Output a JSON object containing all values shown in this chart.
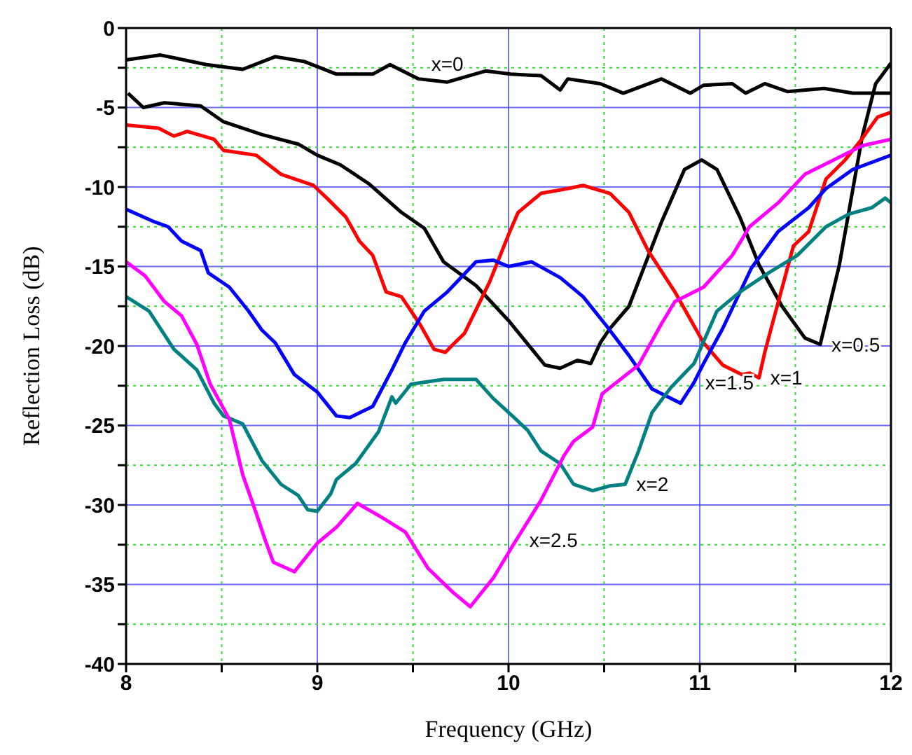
{
  "chart_data": {
    "type": "line",
    "xlabel": "Frequency (GHz)",
    "ylabel": "Reflection Loss (dB)",
    "xlim": [
      8,
      12
    ],
    "xticks": [
      8,
      {
        "value": 8.5,
        "label": null
      },
      9,
      {
        "value": 9.5,
        "label": null
      },
      10,
      {
        "value": 10.5,
        "label": null
      },
      11,
      {
        "value": 11.5,
        "label": null
      },
      12
    ],
    "ylim": [
      -40,
      0
    ],
    "yticks": [
      -40,
      {
        "value": -37.5,
        "label": null
      },
      -35,
      {
        "value": -32.5,
        "label": null
      },
      -30,
      {
        "value": -27.5,
        "label": null
      },
      -25,
      {
        "value": -22.5,
        "label": null
      },
      -20,
      {
        "value": -17.5,
        "label": null
      },
      -15,
      {
        "value": -12.5,
        "label": null
      },
      -10,
      {
        "value": -7.5,
        "label": null
      },
      -5,
      {
        "value": -2.5,
        "label": null
      },
      0
    ],
    "grid": true,
    "legend": false,
    "marker": "none",
    "line_style": "solid",
    "series": [
      {
        "color": "#000000",
        "x": [
          8.0,
          8.18,
          8.42,
          8.61,
          8.78,
          8.93,
          9.1,
          9.29,
          9.38,
          9.53,
          9.68,
          9.88,
          10.01,
          10.17,
          10.27,
          10.31,
          10.48,
          10.6,
          10.8,
          10.95,
          11.02,
          11.17,
          11.24,
          11.34,
          11.46,
          11.65,
          11.8,
          12.0
        ],
        "values": [
          -2.0,
          -1.7,
          -2.3,
          -2.6,
          -1.8,
          -2.1,
          -2.9,
          -2.9,
          -2.3,
          -3.2,
          -3.4,
          -2.7,
          -2.9,
          -3.0,
          -3.9,
          -3.2,
          -3.5,
          -4.1,
          -3.2,
          -4.1,
          -3.6,
          -3.5,
          -4.1,
          -3.5,
          -4.0,
          -3.8,
          -4.1,
          -4.1
        ]
      },
      {
        "color": "#000000",
        "x": [
          8.01,
          8.09,
          8.2,
          8.39,
          8.51,
          8.71,
          8.9,
          9.0,
          9.12,
          9.27,
          9.44,
          9.56,
          9.66,
          9.83,
          10.0,
          10.19,
          10.27,
          10.36,
          10.43,
          10.48,
          10.53,
          10.63,
          10.8,
          10.92,
          11.01,
          11.09,
          11.21,
          11.31,
          11.43,
          11.55,
          11.63,
          11.73,
          11.85,
          11.92,
          12.0
        ],
        "values": [
          -4.1,
          -5.0,
          -4.7,
          -4.9,
          -5.9,
          -6.7,
          -7.3,
          -8.0,
          -8.6,
          -9.8,
          -11.6,
          -12.6,
          -14.7,
          -16.2,
          -18.4,
          -21.2,
          -21.4,
          -20.9,
          -21.1,
          -19.8,
          -18.9,
          -17.5,
          -12.2,
          -8.9,
          -8.3,
          -8.9,
          -11.9,
          -14.9,
          -17.5,
          -19.5,
          -19.9,
          -14.9,
          -6.8,
          -3.5,
          -2.2
        ]
      },
      {
        "color": "#ff0000",
        "x": [
          8.0,
          8.17,
          8.25,
          8.32,
          8.46,
          8.51,
          8.68,
          8.81,
          8.98,
          9.05,
          9.15,
          9.22,
          9.29,
          9.36,
          9.44,
          9.54,
          9.61,
          9.67,
          9.71,
          9.77,
          9.9,
          10.0,
          10.05,
          10.17,
          10.31,
          10.39,
          10.53,
          10.63,
          10.73,
          10.87,
          11.02,
          11.12,
          11.22,
          11.26,
          11.31,
          11.34,
          11.38,
          11.49,
          11.57,
          11.66,
          11.76,
          11.84,
          11.93,
          12.0
        ],
        "values": [
          -6.1,
          -6.3,
          -6.8,
          -6.5,
          -7.0,
          -7.7,
          -8.0,
          -9.2,
          -9.9,
          -10.7,
          -11.9,
          -13.4,
          -14.3,
          -16.6,
          -16.9,
          -18.7,
          -20.2,
          -20.4,
          -19.9,
          -19.2,
          -16.0,
          -13.0,
          -11.6,
          -10.4,
          -10.1,
          -9.9,
          -10.4,
          -11.6,
          -14.0,
          -16.6,
          -19.8,
          -21.2,
          -21.8,
          -21.7,
          -22.0,
          -20.4,
          -18.6,
          -13.7,
          -12.8,
          -9.5,
          -8.3,
          -7.1,
          -5.6,
          -5.3
        ]
      },
      {
        "color": "#0000ff",
        "x": [
          8.0,
          8.15,
          8.22,
          8.29,
          8.39,
          8.43,
          8.54,
          8.64,
          8.71,
          8.78,
          8.88,
          9.0,
          9.1,
          9.17,
          9.29,
          9.39,
          9.46,
          9.56,
          9.68,
          9.83,
          9.92,
          10.0,
          10.12,
          10.27,
          10.39,
          10.51,
          10.63,
          10.75,
          10.9,
          10.97,
          11.02,
          11.12,
          11.27,
          11.41,
          11.57,
          11.66,
          11.8,
          12.0
        ],
        "values": [
          -11.4,
          -12.2,
          -12.5,
          -13.4,
          -14.0,
          -15.4,
          -16.3,
          -17.8,
          -19.0,
          -19.8,
          -21.8,
          -22.9,
          -24.4,
          -24.5,
          -23.8,
          -21.5,
          -19.8,
          -17.8,
          -16.6,
          -14.7,
          -14.6,
          -15.0,
          -14.7,
          -15.7,
          -16.9,
          -18.7,
          -20.6,
          -22.7,
          -23.6,
          -22.3,
          -21.1,
          -18.9,
          -15.1,
          -12.8,
          -11.3,
          -10.1,
          -8.9,
          -8.0
        ]
      },
      {
        "color": "#008080",
        "x": [
          8.0,
          8.12,
          8.25,
          8.37,
          8.46,
          8.51,
          8.61,
          8.71,
          8.81,
          8.9,
          8.95,
          9.0,
          9.07,
          9.1,
          9.2,
          9.32,
          9.39,
          9.41,
          9.49,
          9.66,
          9.83,
          9.92,
          10.02,
          10.1,
          10.17,
          10.27,
          10.34,
          10.44,
          10.53,
          10.61,
          10.68,
          10.75,
          10.85,
          10.97,
          11.09,
          11.21,
          11.36,
          11.51,
          11.66,
          11.78,
          11.9,
          11.97,
          12.0
        ],
        "values": [
          -16.9,
          -17.8,
          -20.2,
          -21.5,
          -23.6,
          -24.4,
          -24.9,
          -27.2,
          -28.7,
          -29.4,
          -30.3,
          -30.4,
          -29.3,
          -28.4,
          -27.4,
          -25.4,
          -23.2,
          -23.6,
          -22.4,
          -22.1,
          -22.1,
          -23.3,
          -24.4,
          -25.3,
          -26.6,
          -27.4,
          -28.7,
          -29.1,
          -28.8,
          -28.7,
          -26.6,
          -24.2,
          -22.6,
          -21.1,
          -17.8,
          -16.6,
          -15.4,
          -14.3,
          -12.5,
          -11.7,
          -11.3,
          -10.7,
          -11.0
        ]
      },
      {
        "color": "#ff00ff",
        "x": [
          8.0,
          8.1,
          8.2,
          8.29,
          8.37,
          8.44,
          8.54,
          8.61,
          8.68,
          8.73,
          8.77,
          8.88,
          9.0,
          9.1,
          9.21,
          9.34,
          9.46,
          9.58,
          9.71,
          9.8,
          9.92,
          10.02,
          10.17,
          10.29,
          10.34,
          10.44,
          10.49,
          10.68,
          10.8,
          10.87,
          11.02,
          11.17,
          11.26,
          11.41,
          11.55,
          11.7,
          11.85,
          12.0
        ],
        "values": [
          -14.7,
          -15.6,
          -17.2,
          -18.1,
          -19.9,
          -22.4,
          -24.6,
          -28.1,
          -30.5,
          -32.3,
          -33.6,
          -34.2,
          -32.4,
          -31.4,
          -29.9,
          -30.8,
          -31.7,
          -34.0,
          -35.5,
          -36.4,
          -34.6,
          -32.6,
          -29.7,
          -26.9,
          -26.0,
          -25.1,
          -23.0,
          -21.2,
          -18.6,
          -17.2,
          -16.3,
          -14.3,
          -12.5,
          -11.0,
          -9.2,
          -8.3,
          -7.4,
          -7.0
        ]
      }
    ],
    "annotations": [
      {
        "text": "x=0",
        "x": 9.68,
        "y": -3.4
      },
      {
        "text": "x=0.5",
        "x": 11.63,
        "y": -19.9
      },
      {
        "text": "x=1",
        "x": 11.31,
        "y": -22.0
      },
      {
        "text": "x=1.5",
        "x": 10.97,
        "y": -22.3
      },
      {
        "text": "x=2",
        "x": 10.61,
        "y": -28.7
      },
      {
        "text": "x=2.5",
        "x": 10.05,
        "y": -32.2
      }
    ]
  }
}
